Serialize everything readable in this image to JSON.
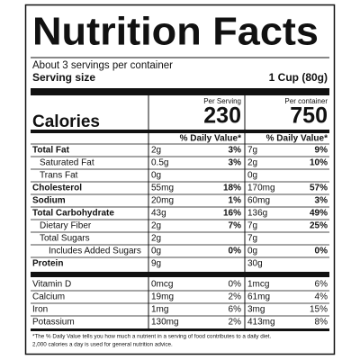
{
  "header": {
    "title": "Nutrition Facts",
    "servings": "About 3 servings per container",
    "serving_size_label": "Serving size",
    "serving_size": "1 Cup (80g)"
  },
  "columns": {
    "per_serving": "Per Serving",
    "per_container": "Per container",
    "daily_value": "% Daily Value*"
  },
  "calories": {
    "label": "Calories",
    "per_serving": "230",
    "per_container": "750"
  },
  "nutrients": [
    [
      "Total Fat",
      "2g",
      "3%",
      "7g",
      "9%"
    ],
    [
      "Saturated Fat",
      "0.5g",
      "3%",
      "2g",
      "10%"
    ],
    [
      "Trans Fat",
      "0g",
      null,
      "0g",
      null
    ],
    [
      "Cholesterol",
      "55mg",
      "18%",
      "170mg",
      "57%"
    ],
    [
      "Sodium",
      "20mg",
      "1%",
      "60mg",
      "3%"
    ],
    [
      "Total Carbohydrate",
      "43g",
      "16%",
      "136g",
      "49%"
    ],
    [
      "Dietary Fiber",
      "2g",
      "7%",
      "7g",
      "25%"
    ],
    [
      "Total Sugars",
      "2g",
      null,
      "7g",
      null
    ],
    [
      "Includes Added Sugars",
      "0g",
      "0%",
      "0g",
      "0%"
    ],
    [
      "Protein",
      "9g",
      null,
      "30g",
      null
    ]
  ],
  "vitamins": [
    [
      "Vitamin D",
      "0mcg",
      "0%",
      "1mcg",
      "6%"
    ],
    [
      "Calcium",
      "19mg",
      "2%",
      "61mg",
      "4%"
    ],
    [
      "Iron",
      "1mg",
      "6%",
      "3mg",
      "15%"
    ],
    [
      "Potassium",
      "130mg",
      "2%",
      "413mg",
      "8%"
    ]
  ],
  "footnote": [
    "*The % Daily Value tells you how much a nutrient in a serving of food contributes to a daily diet.",
    "2,000 calories a day is used for general nutrition advice."
  ]
}
